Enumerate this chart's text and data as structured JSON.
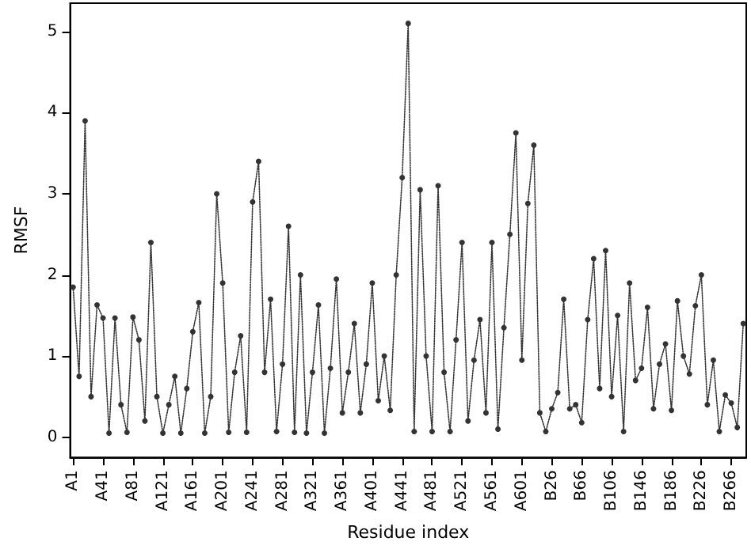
{
  "chart_data": {
    "type": "line",
    "xlabel": "Residue index",
    "ylabel": "RMSF",
    "ylim": [
      -0.25,
      5.35
    ],
    "yticks": [
      0,
      1,
      2,
      3,
      4,
      5
    ],
    "grid": false,
    "marker": "circle",
    "line_style": "dotted",
    "categories": [
      "A1",
      null,
      null,
      null,
      null,
      "A41",
      null,
      null,
      null,
      null,
      "A81",
      null,
      null,
      null,
      null,
      "A121",
      null,
      null,
      null,
      null,
      "A161",
      null,
      null,
      null,
      null,
      "A201",
      null,
      null,
      null,
      null,
      "A241",
      null,
      null,
      null,
      null,
      "A281",
      null,
      null,
      null,
      null,
      "A321",
      null,
      null,
      null,
      null,
      "A361",
      null,
      null,
      null,
      null,
      "A401",
      null,
      null,
      null,
      null,
      "A441",
      null,
      null,
      null,
      null,
      "A481",
      null,
      null,
      null,
      null,
      "A521",
      null,
      null,
      null,
      null,
      "A561",
      null,
      null,
      null,
      null,
      "A601",
      null,
      null,
      null,
      null,
      "B26",
      null,
      null,
      null,
      null,
      "B66",
      null,
      null,
      null,
      null,
      "B106",
      null,
      null,
      null,
      null,
      "B146",
      null,
      null,
      null,
      null,
      "B186",
      null,
      null,
      null,
      null,
      "B226",
      null,
      null,
      null,
      null,
      "B266",
      null,
      null
    ],
    "series": [
      {
        "color": "#333333",
        "values": [
          1.85,
          0.75,
          3.9,
          0.5,
          1.63,
          1.47,
          0.05,
          1.47,
          0.4,
          0.06,
          1.48,
          1.2,
          0.2,
          2.4,
          0.5,
          0.05,
          0.4,
          0.75,
          0.05,
          0.6,
          1.3,
          1.66,
          0.05,
          0.5,
          3.0,
          1.9,
          0.06,
          0.8,
          1.25,
          0.06,
          2.9,
          3.4,
          0.8,
          1.7,
          0.07,
          0.9,
          2.6,
          0.06,
          2.0,
          0.05,
          0.8,
          1.63,
          0.05,
          0.85,
          1.95,
          0.3,
          0.8,
          1.4,
          0.3,
          0.9,
          1.9,
          0.45,
          1.0,
          0.33,
          2.0,
          3.2,
          5.1,
          0.07,
          3.05,
          1.0,
          0.07,
          3.1,
          0.8,
          0.07,
          1.2,
          2.4,
          0.2,
          0.95,
          1.45,
          0.3,
          2.4,
          0.1,
          1.35,
          2.5,
          3.75,
          0.95,
          2.88,
          3.6,
          0.3,
          0.07,
          0.35,
          0.55,
          1.7,
          0.35,
          0.4,
          0.18,
          1.45,
          2.2,
          0.6,
          2.3,
          0.5,
          1.5,
          0.07,
          1.9,
          0.7,
          0.85,
          1.6,
          0.35,
          0.9,
          1.15,
          0.33,
          1.68,
          1.0,
          0.78,
          1.62,
          2.0,
          0.4,
          0.95,
          0.07,
          0.52,
          0.42,
          0.12,
          1.4
        ]
      }
    ]
  }
}
